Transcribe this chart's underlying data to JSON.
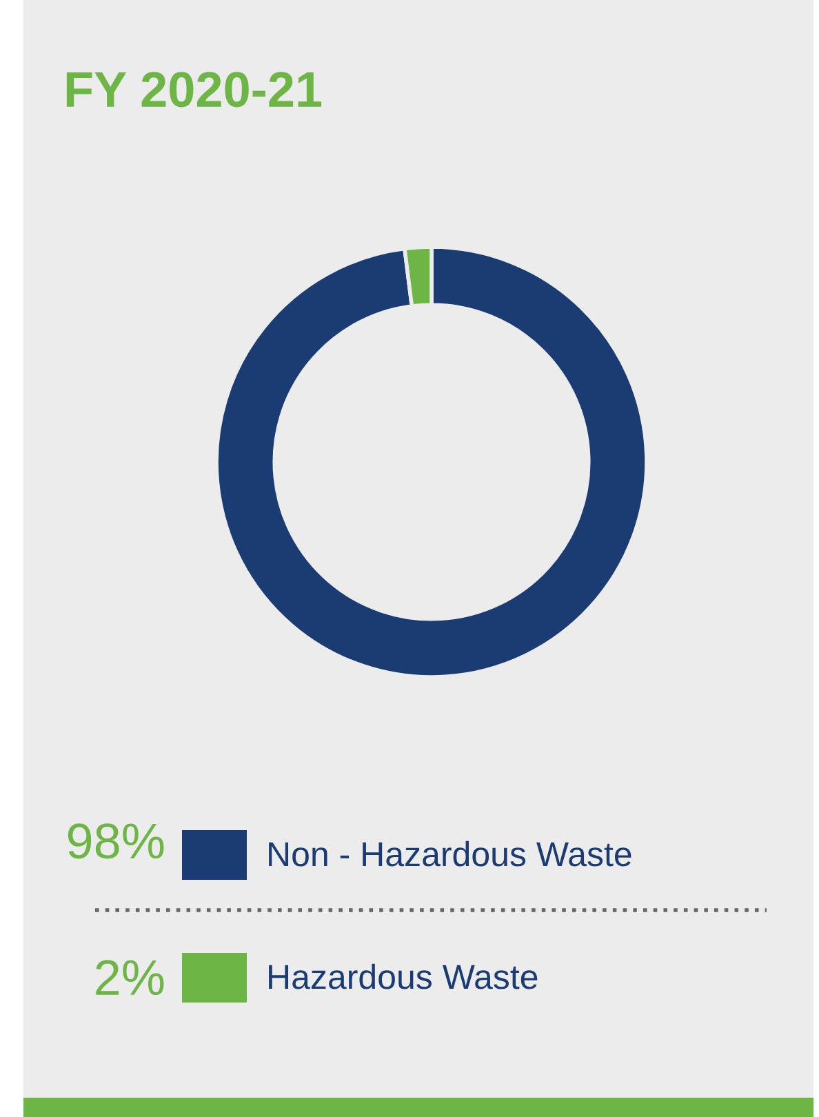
{
  "chart_data": {
    "type": "donut",
    "title": "FY 2020-21",
    "categories": [
      "Non - Hazardous Waste",
      "Hazardous Waste"
    ],
    "values": [
      98,
      2
    ],
    "colors": [
      "#1b3c73",
      "#6db544"
    ],
    "value_labels": [
      "98%",
      "2%"
    ],
    "legend": "bottom"
  }
}
